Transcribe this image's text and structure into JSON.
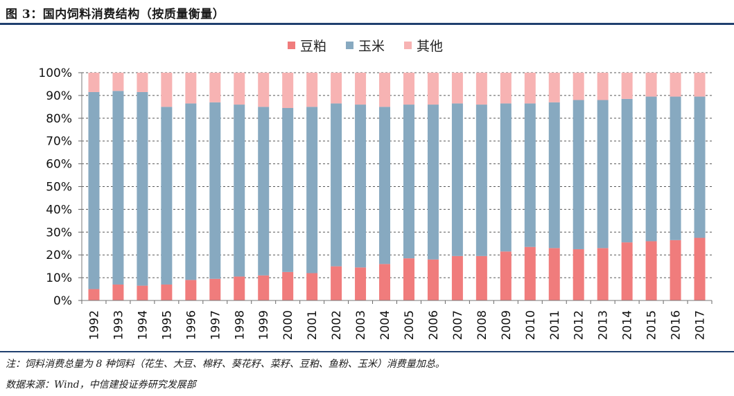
{
  "header": {
    "title": "图 3：国内饲料消费结构（按质量衡量）"
  },
  "footer": {
    "note": "注：饲料消费总量为 8 种饲料（花生、大豆、棉籽、葵花籽、菜籽、豆粕、鱼粉、玉米）消费量加总。",
    "source": "数据来源：Wind，中信建投证券研究发展部"
  },
  "colors": {
    "soymeal": "#f07c7c",
    "corn": "#87a9c0",
    "other": "#f7b3b3",
    "rule": "#1f3f6e"
  },
  "chart_data": {
    "type": "bar",
    "stacked": true,
    "categories": [
      "1992",
      "1993",
      "1994",
      "1995",
      "1996",
      "1997",
      "1998",
      "1999",
      "2000",
      "2001",
      "2002",
      "2003",
      "2004",
      "2005",
      "2006",
      "2007",
      "2008",
      "2009",
      "2010",
      "2011",
      "2012",
      "2013",
      "2014",
      "2015",
      "2016",
      "2017"
    ],
    "series": [
      {
        "name": "豆粕",
        "values": [
          5,
          7,
          6.5,
          7,
          9,
          9.5,
          10.5,
          11,
          12.5,
          12,
          15,
          14.5,
          16,
          18.5,
          18,
          19.5,
          19.5,
          21.5,
          23.5,
          23,
          22.5,
          23,
          25.5,
          26,
          26.5,
          27.5
        ]
      },
      {
        "name": "玉米",
        "values": [
          86.5,
          85,
          85,
          78,
          77.5,
          77.5,
          75.5,
          74,
          72,
          73,
          71.5,
          71.5,
          69,
          67.5,
          68,
          67,
          66.5,
          65,
          63,
          64,
          65.5,
          65,
          63,
          63.5,
          63,
          62
        ]
      },
      {
        "name": "其他",
        "values": [
          8.5,
          8,
          8.5,
          15,
          13.5,
          13,
          14,
          15,
          15.5,
          15,
          13.5,
          14,
          15,
          14,
          14,
          13.5,
          14,
          13.5,
          13.5,
          13,
          12,
          12,
          11.5,
          10.5,
          10.5,
          10.5
        ]
      }
    ],
    "ylim": [
      0,
      100
    ],
    "yticks": [
      "0%",
      "10%",
      "20%",
      "30%",
      "40%",
      "50%",
      "60%",
      "70%",
      "80%",
      "90%",
      "100%"
    ],
    "legend": "top-center",
    "grid": true
  }
}
